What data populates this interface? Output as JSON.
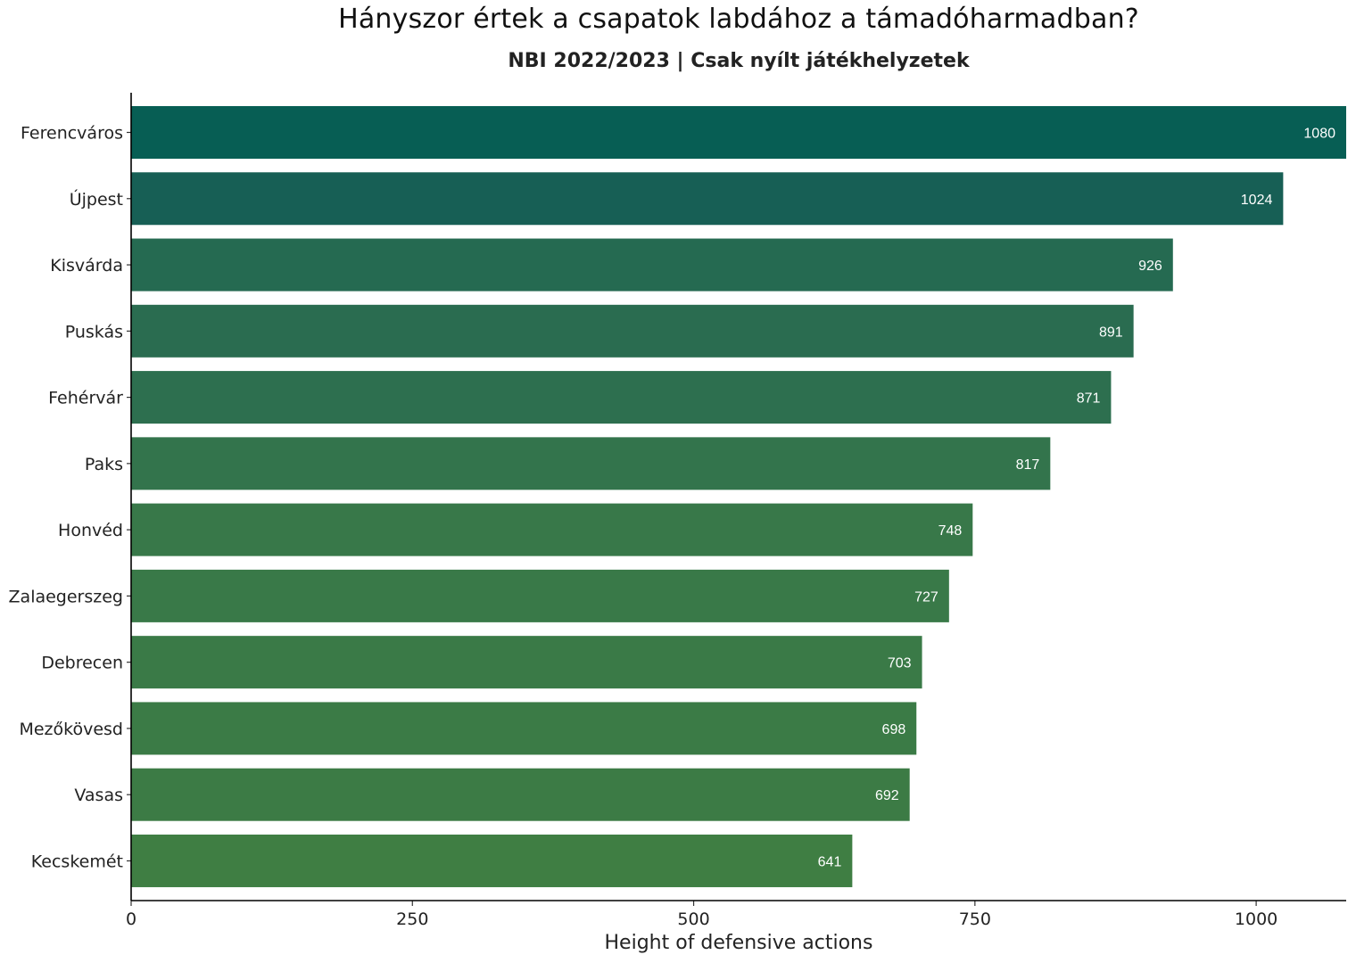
{
  "chart_data": {
    "type": "bar",
    "orientation": "horizontal",
    "title": "Hányszor értek a csapatok labdához a támadóharmadban?",
    "subtitle": "NBI 2022/2023 | Csak nyílt játékhelyzetek",
    "xlabel": "Height of defensive actions",
    "ylabel": "",
    "xlim": [
      0,
      1080
    ],
    "xticks": [
      0,
      250,
      500,
      750,
      1000
    ],
    "categories": [
      "Ferencváros",
      "Újpest",
      "Kisvárda",
      "Puskás",
      "Fehérvár",
      "Paks",
      "Honvéd",
      "Zalaegerszeg",
      "Debrecen",
      "Mezőkövesd",
      "Vasas",
      "Kecskemét"
    ],
    "values": [
      1080,
      1024,
      926,
      891,
      871,
      817,
      748,
      727,
      703,
      698,
      692,
      641
    ],
    "data_labels": [
      "1080",
      "1024",
      "926",
      "891",
      "871",
      "817",
      "748",
      "727",
      "703",
      "698",
      "692",
      "641"
    ],
    "colors": [
      "#075e54",
      "#175f55",
      "#256a51",
      "#2a6c50",
      "#2d6f4f",
      "#33744c",
      "#387849",
      "#397948",
      "#3a7a47",
      "#3b7b46",
      "#3c7b45",
      "#3f7e43"
    ],
    "grid": false,
    "legend": "none"
  }
}
